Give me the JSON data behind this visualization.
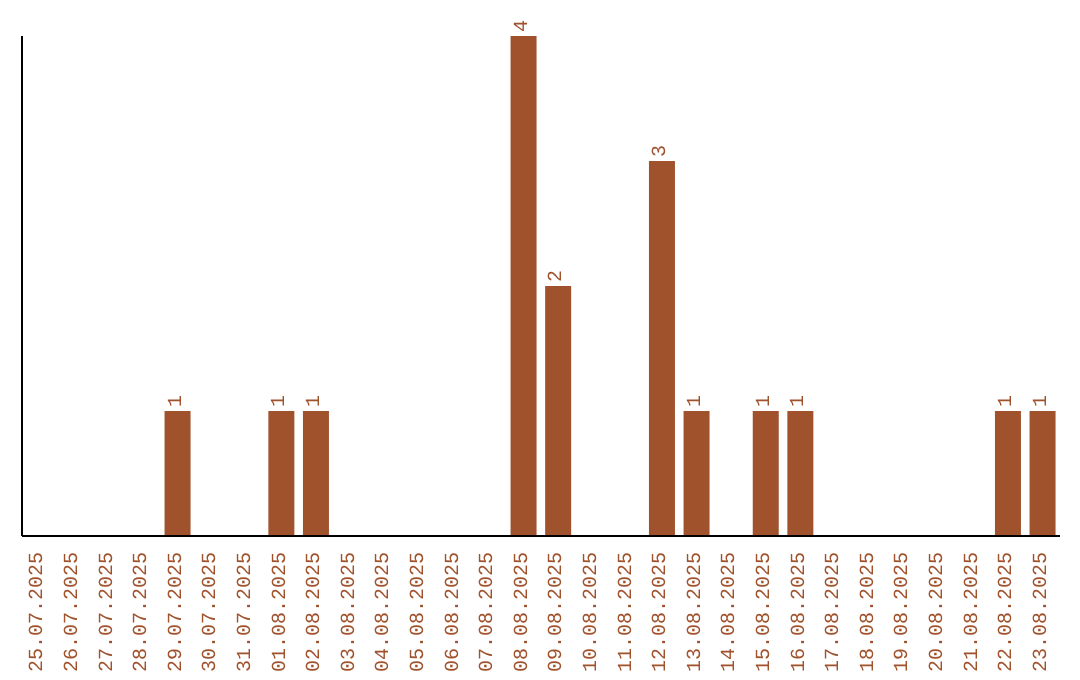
{
  "chart_data": {
    "type": "bar",
    "categories": [
      "25.07.2025",
      "26.07.2025",
      "27.07.2025",
      "28.07.2025",
      "29.07.2025",
      "30.07.2025",
      "31.07.2025",
      "01.08.2025",
      "02.08.2025",
      "03.08.2025",
      "04.08.2025",
      "05.08.2025",
      "06.08.2025",
      "07.08.2025",
      "08.08.2025",
      "09.08.2025",
      "10.08.2025",
      "11.08.2025",
      "12.08.2025",
      "13.08.2025",
      "14.08.2025",
      "15.08.2025",
      "16.08.2025",
      "17.08.2025",
      "18.08.2025",
      "19.08.2025",
      "20.08.2025",
      "21.08.2025",
      "22.08.2025",
      "23.08.2025"
    ],
    "values": [
      0,
      0,
      0,
      0,
      1,
      0,
      0,
      1,
      1,
      0,
      0,
      0,
      0,
      0,
      4,
      2,
      0,
      0,
      3,
      1,
      0,
      1,
      1,
      0,
      0,
      0,
      0,
      0,
      1,
      1
    ],
    "value_labels": [
      null,
      null,
      null,
      null,
      "1",
      null,
      null,
      "1",
      "1",
      null,
      null,
      null,
      null,
      null,
      "4",
      "2",
      null,
      null,
      "3",
      "1",
      null,
      "1",
      "1",
      null,
      null,
      null,
      null,
      null,
      "1",
      "1"
    ],
    "color": "#a0522d",
    "tick_labels": "x",
    "grid": false
  }
}
